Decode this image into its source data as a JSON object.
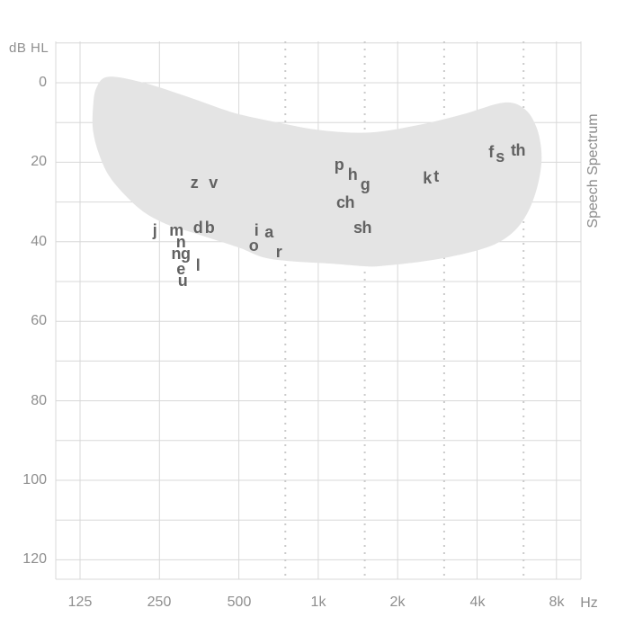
{
  "right_label": "Speech Spectrum",
  "chart_data": {
    "type": "area",
    "title": "Speech Spectrum audiogram (speech banana with phoneme positions)",
    "x_axis": {
      "unit": "Hz",
      "scale": "log2-octave",
      "ticks": [
        {
          "hz": 125,
          "label": "125"
        },
        {
          "hz": 250,
          "label": "250"
        },
        {
          "hz": 500,
          "label": "500"
        },
        {
          "hz": 1000,
          "label": "1k"
        },
        {
          "hz": 2000,
          "label": "2k"
        },
        {
          "hz": 4000,
          "label": "4k"
        },
        {
          "hz": 8000,
          "label": "8k"
        }
      ],
      "dotted_hz": [
        750,
        1500,
        3000,
        6000
      ],
      "range_hz": [
        100,
        10000
      ]
    },
    "y_axis": {
      "label": "dB HL",
      "tick_labels": [
        "0",
        "20",
        "40",
        "60",
        "80",
        "100",
        "120"
      ],
      "tick_values": [
        0,
        20,
        40,
        60,
        80,
        100,
        120
      ],
      "gridline_step_db": 10,
      "range_db": [
        -10,
        125
      ],
      "grid": "on"
    },
    "phonemes": [
      {
        "label": "z",
        "hz": 340,
        "db": 25
      },
      {
        "label": "v",
        "hz": 400,
        "db": 25
      },
      {
        "label": "j",
        "hz": 240,
        "db": 37
      },
      {
        "label": "m",
        "hz": 290,
        "db": 37
      },
      {
        "label": "d",
        "hz": 350,
        "db": 36.5
      },
      {
        "label": "b",
        "hz": 387,
        "db": 36.5
      },
      {
        "label": "n",
        "hz": 300,
        "db": 40
      },
      {
        "label": "ng",
        "hz": 302,
        "db": 43
      },
      {
        "label": "e",
        "hz": 302,
        "db": 46.8
      },
      {
        "label": "u",
        "hz": 305,
        "db": 49.8
      },
      {
        "label": "l",
        "hz": 350,
        "db": 46
      },
      {
        "label": "i",
        "hz": 580,
        "db": 37
      },
      {
        "label": "a",
        "hz": 650,
        "db": 37.5
      },
      {
        "label": "o",
        "hz": 567,
        "db": 41
      },
      {
        "label": "r",
        "hz": 710,
        "db": 42.5
      },
      {
        "label": "p",
        "hz": 1200,
        "db": 20.5
      },
      {
        "label": "h",
        "hz": 1350,
        "db": 23
      },
      {
        "label": "g",
        "hz": 1500,
        "db": 25.5
      },
      {
        "label": "ch",
        "hz": 1270,
        "db": 30
      },
      {
        "label": "sh",
        "hz": 1470,
        "db": 36.5
      },
      {
        "label": "k",
        "hz": 2580,
        "db": 24
      },
      {
        "label": "t",
        "hz": 2800,
        "db": 23.5
      },
      {
        "label": "f",
        "hz": 4500,
        "db": 17.5
      },
      {
        "label": "s",
        "hz": 4900,
        "db": 18.5
      },
      {
        "label": "th",
        "hz": 5700,
        "db": 17
      }
    ],
    "speech_region_outline": [
      {
        "hz": 144,
        "db": 1.4
      },
      {
        "hz": 160,
        "db": -1.5
      },
      {
        "hz": 218,
        "db": 0
      },
      {
        "hz": 322,
        "db": 3.6
      },
      {
        "hz": 476,
        "db": 7.5
      },
      {
        "hz": 703,
        "db": 10
      },
      {
        "hz": 1040,
        "db": 12
      },
      {
        "hz": 1580,
        "db": 12.5
      },
      {
        "hz": 2370,
        "db": 10.7
      },
      {
        "hz": 3500,
        "db": 8
      },
      {
        "hz": 5060,
        "db": 5
      },
      {
        "hz": 6060,
        "db": 6.6
      },
      {
        "hz": 6700,
        "db": 11
      },
      {
        "hz": 7000,
        "db": 16.6
      },
      {
        "hz": 6970,
        "db": 22
      },
      {
        "hz": 6600,
        "db": 28.6
      },
      {
        "hz": 6060,
        "db": 34
      },
      {
        "hz": 5390,
        "db": 38
      },
      {
        "hz": 4530,
        "db": 41
      },
      {
        "hz": 3370,
        "db": 43.4
      },
      {
        "hz": 2460,
        "db": 45
      },
      {
        "hz": 1800,
        "db": 46
      },
      {
        "hz": 1550,
        "db": 46.2
      },
      {
        "hz": 1120,
        "db": 45.5
      },
      {
        "hz": 824,
        "db": 45
      },
      {
        "hz": 626,
        "db": 44
      },
      {
        "hz": 507,
        "db": 41.6
      },
      {
        "hz": 406,
        "db": 39.5
      },
      {
        "hz": 327,
        "db": 37.5
      },
      {
        "hz": 264,
        "db": 35.5
      },
      {
        "hz": 218,
        "db": 32.5
      },
      {
        "hz": 186,
        "db": 28.4
      },
      {
        "hz": 161,
        "db": 23.4
      },
      {
        "hz": 147,
        "db": 17.7
      },
      {
        "hz": 140,
        "db": 12
      },
      {
        "hz": 140,
        "db": 6.4
      }
    ],
    "legend": "none",
    "colors": {
      "region_fill": "#e4e4e4",
      "grid": "#d8d8d8",
      "grid_dotted": "#cbcbcb",
      "axis_text": "#8e8e8e",
      "phoneme_text": "#626262",
      "background": "#ffffff"
    }
  }
}
